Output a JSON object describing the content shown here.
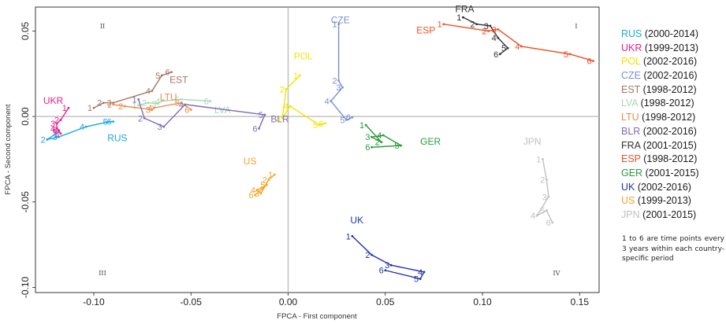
{
  "chart_data": {
    "type": "scatter",
    "xlabel": "FPCA - First component",
    "ylabel": "FPCA - Second component",
    "xlim": [
      -0.13,
      0.16
    ],
    "ylim": [
      -0.103,
      0.064
    ],
    "xticks": [
      -0.1,
      -0.05,
      0.0,
      0.05,
      0.1,
      0.15
    ],
    "xtick_labels": [
      "-0.10",
      "-0.05",
      "0.00",
      "0.05",
      "0.10",
      "0.15"
    ],
    "yticks": [
      -0.1,
      -0.05,
      0.0,
      0.05
    ],
    "ytick_labels": [
      "-0.10",
      "-0.05",
      "0.00",
      "0.05"
    ],
    "quadrants": [
      "I",
      "II",
      "III",
      "IV"
    ],
    "series": [
      {
        "name": "RUS",
        "period": "(2000-2014)",
        "color": "#1ba8e0",
        "label_at": [
          -0.093,
          -0.0145
        ],
        "points": [
          [
            -0.118,
            -0.009
          ],
          [
            -0.124,
            -0.0135
          ],
          [
            -0.118,
            -0.012
          ],
          [
            -0.104,
            -0.006
          ],
          [
            -0.092,
            -0.003
          ],
          [
            -0.09,
            -0.003
          ]
        ]
      },
      {
        "name": "UKR",
        "period": "(1999-2013)",
        "color": "#e5208f",
        "label_at": [
          -0.126,
          0.0075
        ],
        "points": [
          [
            -0.113,
            0.005
          ],
          [
            -0.117,
            -0.002
          ],
          [
            -0.119,
            -0.004
          ],
          [
            -0.119,
            -0.007
          ],
          [
            -0.117,
            -0.01
          ],
          [
            -0.118,
            -0.008
          ]
        ]
      },
      {
        "name": "POL",
        "period": "(2002-2016)",
        "color": "#f5e300",
        "label_at": [
          0.003,
          0.0335
        ],
        "points": [
          [
            0.006,
            0.024
          ],
          [
            -0.001,
            0.016
          ],
          [
            -0.003,
            -0.001
          ],
          [
            0.001,
            0.006
          ],
          [
            0.016,
            -0.005
          ],
          [
            0.019,
            -0.004
          ]
        ]
      },
      {
        "name": "CZE",
        "period": "(2002-2016)",
        "color": "#7b8fd0",
        "label_at": [
          0.022,
          0.0545
        ],
        "points": [
          [
            0.026,
            0.054
          ],
          [
            0.026,
            0.021
          ],
          [
            0.028,
            0.017
          ],
          [
            0.022,
            0.009
          ],
          [
            0.03,
            -0.002
          ],
          [
            0.033,
            -0.0005
          ]
        ]
      },
      {
        "name": "EST",
        "period": "(1998-2012)",
        "color": "#a87562",
        "label_at": [
          -0.061,
          0.0195
        ],
        "points": [
          [
            -0.1,
            0.005
          ],
          [
            -0.095,
            0.008
          ],
          [
            -0.09,
            0.008
          ],
          [
            -0.07,
            0.015
          ],
          [
            -0.065,
            0.024
          ],
          [
            -0.06,
            0.026
          ]
        ]
      },
      {
        "name": "LVA",
        "period": "(1998-2012)",
        "color": "#a8d8b8",
        "label_at": [
          -0.038,
          0.002
        ],
        "points": [
          [
            -0.077,
            0.0065
          ],
          [
            -0.072,
            0.008
          ],
          [
            -0.067,
            0.0075
          ],
          [
            -0.065,
            0.009
          ],
          [
            -0.055,
            0.01
          ],
          [
            -0.04,
            0.009
          ]
        ]
      },
      {
        "name": "LTU",
        "period": "(1998-2012)",
        "color": "#f08a48",
        "label_at": [
          -0.066,
          0.0095
        ],
        "points": [
          [
            -0.09,
            0.007
          ],
          [
            -0.084,
            0.006
          ],
          [
            -0.07,
            0.004
          ],
          [
            -0.069,
            0.005
          ],
          [
            -0.055,
            0.008
          ],
          [
            -0.05,
            0.004
          ]
        ]
      },
      {
        "name": "BLR",
        "period": "(2002-2016)",
        "color": "#7f6db5",
        "label_at": [
          -0.009,
          -0.0035
        ],
        "points": [
          [
            -0.077,
            0.01
          ],
          [
            -0.074,
            -0.001
          ],
          [
            -0.064,
            -0.006
          ],
          [
            -0.053,
            0.007
          ],
          [
            -0.012,
            0.001
          ],
          [
            -0.015,
            -0.007
          ]
        ]
      },
      {
        "name": "FRA",
        "period": "(2001-2015)",
        "color": "#333333",
        "label_at": [
          0.086,
          0.061
        ],
        "points": [
          [
            0.09,
            0.058
          ],
          [
            0.097,
            0.054
          ],
          [
            0.104,
            0.053
          ],
          [
            0.108,
            0.046
          ],
          [
            0.113,
            0.04
          ],
          [
            0.109,
            0.0365
          ]
        ]
      },
      {
        "name": "ESP",
        "period": "(1998-2012)",
        "color": "#f04e23",
        "label_at": [
          0.066,
          0.0485
        ],
        "points": [
          [
            0.08,
            0.054
          ],
          [
            0.103,
            0.05
          ],
          [
            0.108,
            0.051
          ],
          [
            0.12,
            0.041
          ],
          [
            0.145,
            0.0365
          ],
          [
            0.157,
            0.0325
          ]
        ]
      },
      {
        "name": "GER",
        "period": "(2001-2015)",
        "color": "#2a9a3a",
        "label_at": [
          0.068,
          -0.0165
        ],
        "points": [
          [
            0.04,
            -0.005
          ],
          [
            0.048,
            -0.015
          ],
          [
            0.043,
            -0.012
          ],
          [
            0.049,
            -0.011
          ],
          [
            0.058,
            -0.017
          ],
          [
            0.043,
            -0.018
          ]
        ]
      },
      {
        "name": "UK",
        "period": "(2002-2016)",
        "color": "#2233aa",
        "label_at": [
          0.032,
          -0.0625
        ],
        "points": [
          [
            0.033,
            -0.07
          ],
          [
            0.043,
            -0.081
          ],
          [
            0.053,
            -0.087
          ],
          [
            0.07,
            -0.091
          ],
          [
            0.068,
            -0.095
          ],
          [
            0.05,
            -0.09
          ]
        ]
      },
      {
        "name": "US",
        "period": "(1999-2013)",
        "color": "#f4a425",
        "label_at": [
          -0.023,
          -0.028
        ],
        "points": [
          [
            -0.007,
            -0.034
          ],
          [
            -0.01,
            -0.037
          ],
          [
            -0.014,
            -0.045
          ],
          [
            -0.016,
            -0.043
          ],
          [
            -0.011,
            -0.04
          ],
          [
            -0.017,
            -0.046
          ]
        ]
      },
      {
        "name": "JPN",
        "period": "(2001-2015)",
        "color": "#c0c0c0",
        "label_at": [
          0.121,
          -0.0165
        ],
        "points": [
          [
            0.131,
            -0.025
          ],
          [
            0.133,
            -0.037
          ],
          [
            0.134,
            -0.047
          ],
          [
            0.128,
            -0.058
          ],
          [
            0.133,
            -0.055
          ],
          [
            0.136,
            -0.062
          ]
        ]
      }
    ]
  },
  "legend_note": "1 to 6 are time points every 3 years within each country-specific period"
}
